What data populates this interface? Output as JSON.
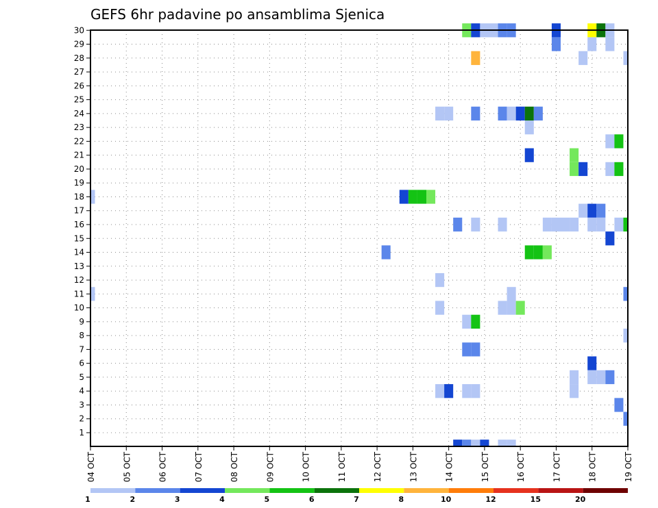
{
  "chart_data": {
    "type": "heatmap",
    "title": "GEFS 6hr padavine po ansamblima Sjenica",
    "xlabel": "",
    "ylabel": "",
    "x_ticks": [
      "04 OCT",
      "05 OCT",
      "06 OCT",
      "07 OCT",
      "08 OCT",
      "09 OCT",
      "10 OCT",
      "11 OCT",
      "12 OCT",
      "13 OCT",
      "14 OCT",
      "15 OCT",
      "16 OCT",
      "17 OCT",
      "18 OCT",
      "19 OCT"
    ],
    "y_ticks": [
      "1",
      "2",
      "3",
      "4",
      "5",
      "6",
      "7",
      "8",
      "9",
      "10",
      "11",
      "12",
      "13",
      "14",
      "15",
      "16",
      "17",
      "18",
      "19",
      "20",
      "21",
      "22",
      "23",
      "24",
      "25",
      "26",
      "27",
      "28",
      "29",
      "30"
    ],
    "xlim_steps": [
      0,
      60
    ],
    "ylim_members": [
      0,
      30
    ],
    "grid": true,
    "legend": {
      "placement": "bottom",
      "labels": [
        "1",
        "2",
        "3",
        "4",
        "5",
        "6",
        "7",
        "8",
        "10",
        "12",
        "15",
        "20"
      ],
      "colors": [
        "#b3c6f5",
        "#5b86ea",
        "#1446d2",
        "#74e85c",
        "#14c314",
        "#0b730b",
        "#ffff00",
        "#ffb43c",
        "#ff7d0a",
        "#e6321e",
        "#b91414",
        "#6e0000"
      ]
    },
    "cells": [
      {
        "m": 30,
        "t": [
          [
            42,
            "#74e85c"
          ],
          [
            43,
            "#1446d2"
          ],
          [
            44,
            "#b3c6f5"
          ],
          [
            45,
            "#b3c6f5"
          ],
          [
            46,
            "#5b86ea"
          ],
          [
            47,
            "#5b86ea"
          ],
          [
            52,
            "#1446d2"
          ],
          [
            56,
            "#ffff00"
          ],
          [
            57,
            "#0b730b"
          ],
          [
            58,
            "#b3c6f5"
          ],
          [
            63,
            "#b3c6f5"
          ],
          [
            64,
            "#b3c6f5"
          ]
        ]
      },
      {
        "m": 29,
        "t": [
          [
            52,
            "#5b86ea"
          ],
          [
            56,
            "#b3c6f5"
          ],
          [
            58,
            "#b3c6f5"
          ]
        ]
      },
      {
        "m": 28,
        "t": [
          [
            43,
            "#ffb43c"
          ],
          [
            55,
            "#b3c6f5"
          ],
          [
            60,
            "#b3c6f5"
          ],
          [
            61,
            "#ffff00"
          ]
        ]
      },
      {
        "m": 27,
        "t": [
          [
            66,
            "#74e85c"
          ],
          [
            67,
            "#74e85c"
          ]
        ]
      },
      {
        "m": 26,
        "t": [
          [
            63,
            "#1446d2"
          ],
          [
            71,
            "#1446d2"
          ],
          [
            72,
            "#1446d2"
          ]
        ]
      },
      {
        "m": 25,
        "t": [
          [
            68,
            "#b3c6f5"
          ],
          [
            72,
            "#1446d2"
          ]
        ]
      },
      {
        "m": 24,
        "t": [
          [
            39,
            "#b3c6f5"
          ],
          [
            40,
            "#b3c6f5"
          ],
          [
            43,
            "#5b86ea"
          ],
          [
            46,
            "#5b86ea"
          ],
          [
            47,
            "#b3c6f5"
          ],
          [
            48,
            "#1446d2"
          ],
          [
            49,
            "#0b730b"
          ],
          [
            50,
            "#5b86ea"
          ]
        ]
      },
      {
        "m": 23,
        "t": [
          [
            49,
            "#b3c6f5"
          ]
        ]
      },
      {
        "m": 22,
        "t": [
          [
            58,
            "#b3c6f5"
          ],
          [
            59,
            "#14c314"
          ],
          [
            61,
            "#b3c6f5"
          ],
          [
            66,
            "#5b86ea"
          ],
          [
            67,
            "#ff7d0a"
          ],
          [
            68,
            "#74e85c"
          ],
          [
            69,
            "#b3c6f5"
          ],
          [
            70,
            "#b3c6f5"
          ]
        ]
      },
      {
        "m": 21,
        "t": [
          [
            49,
            "#1446d2"
          ],
          [
            54,
            "#74e85c"
          ]
        ]
      },
      {
        "m": 20,
        "t": [
          [
            54,
            "#74e85c"
          ],
          [
            55,
            "#1446d2"
          ],
          [
            58,
            "#b3c6f5"
          ],
          [
            59,
            "#14c314"
          ],
          [
            71,
            "#1446d2"
          ]
        ]
      },
      {
        "m": 19,
        "t": [
          [
            66,
            "#b3c6f5"
          ],
          [
            71,
            "#74e85c"
          ]
        ]
      },
      {
        "m": 18,
        "t": [
          [
            0,
            "#b3c6f5"
          ],
          [
            35,
            "#1446d2"
          ],
          [
            36,
            "#14c314"
          ],
          [
            37,
            "#14c314"
          ],
          [
            38,
            "#74e85c"
          ]
        ]
      },
      {
        "m": 17,
        "t": [
          [
            55,
            "#b3c6f5"
          ],
          [
            56,
            "#1446d2"
          ],
          [
            57,
            "#5b86ea"
          ],
          [
            61,
            "#b3c6f5"
          ],
          [
            71,
            "#ffb43c"
          ],
          [
            72,
            "#6e0000"
          ]
        ]
      },
      {
        "m": 16,
        "t": [
          [
            41,
            "#5b86ea"
          ],
          [
            43,
            "#b3c6f5"
          ],
          [
            46,
            "#b3c6f5"
          ],
          [
            51,
            "#b3c6f5"
          ],
          [
            52,
            "#b3c6f5"
          ],
          [
            53,
            "#b3c6f5"
          ],
          [
            54,
            "#b3c6f5"
          ],
          [
            56,
            "#b3c6f5"
          ],
          [
            57,
            "#b3c6f5"
          ],
          [
            59,
            "#b3c6f5"
          ],
          [
            60,
            "#14c314"
          ],
          [
            63,
            "#b3c6f5"
          ],
          [
            64,
            "#1446d2"
          ],
          [
            71,
            "#b3c6f5"
          ]
        ]
      },
      {
        "m": 15,
        "t": [
          [
            58,
            "#1446d2"
          ]
        ]
      },
      {
        "m": 14,
        "t": [
          [
            33,
            "#5b86ea"
          ],
          [
            49,
            "#14c314"
          ],
          [
            50,
            "#14c314"
          ],
          [
            51,
            "#74e85c"
          ],
          [
            71,
            "#b91414"
          ]
        ]
      },
      {
        "m": 13,
        "t": [
          [
            70,
            "#ff7d0a"
          ],
          [
            71,
            "#5b86ea"
          ]
        ]
      },
      {
        "m": 12,
        "t": [
          [
            39,
            "#b3c6f5"
          ]
        ]
      },
      {
        "m": 11,
        "t": [
          [
            0,
            "#b3c6f5"
          ],
          [
            47,
            "#b3c6f5"
          ],
          [
            60,
            "#5b86ea"
          ],
          [
            61,
            "#1446d2"
          ],
          [
            62,
            "#ffb43c"
          ],
          [
            68,
            "#b3c6f5"
          ]
        ]
      },
      {
        "m": 10,
        "t": [
          [
            39,
            "#b3c6f5"
          ],
          [
            46,
            "#b3c6f5"
          ],
          [
            47,
            "#b3c6f5"
          ],
          [
            48,
            "#74e85c"
          ],
          [
            66,
            "#b3c6f5"
          ],
          [
            67,
            "#ff7d0a"
          ],
          [
            68,
            "#1446d2"
          ],
          [
            69,
            "#b3c6f5"
          ]
        ]
      },
      {
        "m": 9,
        "t": [
          [
            42,
            "#b3c6f5"
          ],
          [
            43,
            "#14c314"
          ]
        ]
      },
      {
        "m": 8,
        "t": [
          [
            60,
            "#b3c6f5"
          ],
          [
            61,
            "#74e85c"
          ],
          [
            62,
            "#1446d2"
          ]
        ]
      },
      {
        "m": 7,
        "t": [
          [
            42,
            "#5b86ea"
          ],
          [
            43,
            "#5b86ea"
          ],
          [
            62,
            "#b3c6f5"
          ],
          [
            65,
            "#b3c6f5"
          ],
          [
            71,
            "#b3c6f5"
          ]
        ]
      },
      {
        "m": 6,
        "t": [
          [
            56,
            "#1446d2"
          ],
          [
            65,
            "#b3c6f5"
          ],
          [
            66,
            "#b3c6f5"
          ]
        ]
      },
      {
        "m": 5,
        "t": [
          [
            54,
            "#b3c6f5"
          ],
          [
            56,
            "#b3c6f5"
          ],
          [
            57,
            "#b3c6f5"
          ],
          [
            58,
            "#5b86ea"
          ],
          [
            71,
            "#b3c6f5"
          ]
        ]
      },
      {
        "m": 4,
        "t": [
          [
            39,
            "#b3c6f5"
          ],
          [
            40,
            "#1446d2"
          ],
          [
            42,
            "#b3c6f5"
          ],
          [
            43,
            "#b3c6f5"
          ],
          [
            54,
            "#b3c6f5"
          ],
          [
            72,
            "#b3c6f5"
          ]
        ]
      },
      {
        "m": 3,
        "t": [
          [
            59,
            "#5b86ea"
          ],
          [
            64,
            "#b3c6f5"
          ],
          [
            68,
            "#b3c6f5"
          ]
        ]
      },
      {
        "m": 2,
        "t": [
          [
            60,
            "#5b86ea"
          ],
          [
            66,
            "#b3c6f5"
          ]
        ]
      },
      {
        "m": 0,
        "t": [
          [
            41,
            "#1446d2"
          ],
          [
            42,
            "#5b86ea"
          ],
          [
            43,
            "#b3c6f5"
          ],
          [
            44,
            "#1446d2"
          ],
          [
            46,
            "#b3c6f5"
          ],
          [
            47,
            "#b3c6f5"
          ]
        ]
      }
    ]
  }
}
